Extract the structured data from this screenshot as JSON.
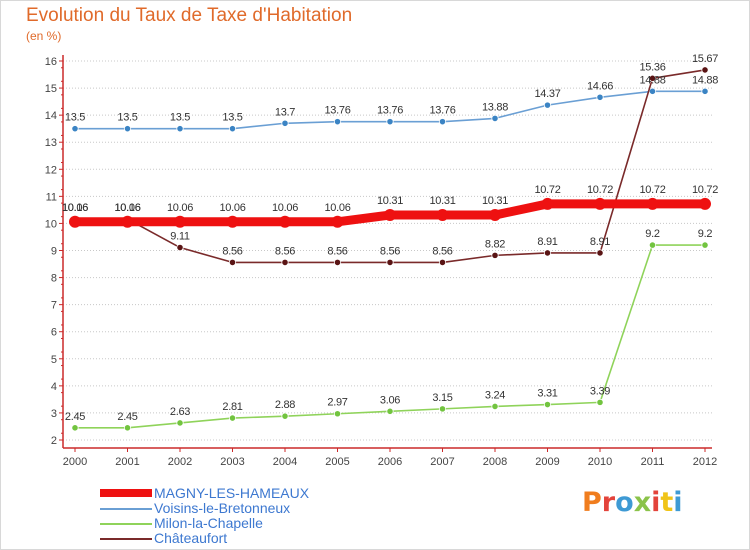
{
  "title": "Evolution du Taux de Taxe d'Habitation",
  "subtitle": "(en %)",
  "logo": {
    "text": "Proxiti",
    "letter_colors": [
      "#f07d1e",
      "#e3433b",
      "#3e9ad4",
      "#8bc34a",
      "#e3433b",
      "#f0c419",
      "#3e9ad4"
    ]
  },
  "colors": {
    "axis": "#cc2a2a",
    "grid": "#c8c8c8",
    "label": "#444444",
    "legend_text": "#3d78d0"
  },
  "chart_data": {
    "type": "line",
    "title": "Evolution du Taux de Taxe d'Habitation",
    "ylabel": "(en %)",
    "xlabel": "",
    "ylim": [
      2,
      16
    ],
    "yticks": [
      2,
      3,
      4,
      5,
      6,
      7,
      8,
      9,
      10,
      11,
      12,
      13,
      14,
      15,
      16
    ],
    "x": [
      "2000",
      "2001",
      "2002",
      "2003",
      "2004",
      "2005",
      "2006",
      "2007",
      "2008",
      "2009",
      "2010",
      "2011",
      "2012"
    ],
    "series": [
      {
        "name": "MAGNY-LES-HAMEAUX",
        "color": "#ee1111",
        "marker_fill": "#ee1111",
        "emphasis": true,
        "values": [
          10.06,
          10.06,
          10.06,
          10.06,
          10.06,
          10.06,
          10.31,
          10.31,
          10.31,
          10.72,
          10.72,
          10.72,
          10.72
        ],
        "labels": [
          "10.06",
          "10.06",
          "10.06",
          "10.06",
          "10.06",
          "10.06",
          "10.31",
          "10.31",
          "10.31",
          "10.72",
          "10.72",
          "10.72",
          "10.72"
        ]
      },
      {
        "name": "Voisins-le-Bretonneux",
        "color": "#6a9fd4",
        "marker_fill": "#3b84c4",
        "emphasis": false,
        "values": [
          13.5,
          13.5,
          13.5,
          13.5,
          13.7,
          13.76,
          13.76,
          13.76,
          13.88,
          14.37,
          14.66,
          14.88,
          14.88
        ],
        "labels": [
          "13.5",
          "13.5",
          "13.5",
          "13.5",
          "13.7",
          "13.76",
          "13.76",
          "13.76",
          "13.88",
          "14.37",
          "14.66",
          "14.88",
          "14.88"
        ]
      },
      {
        "name": "Milon-la-Chapelle",
        "color": "#8fd35a",
        "marker_fill": "#72c43f",
        "emphasis": false,
        "values": [
          2.45,
          2.45,
          2.63,
          2.81,
          2.88,
          2.97,
          3.06,
          3.15,
          3.24,
          3.31,
          3.39,
          9.2,
          9.2
        ],
        "labels": [
          "2.45",
          "2.45",
          "2.63",
          "2.81",
          "2.88",
          "2.97",
          "3.06",
          "3.15",
          "3.24",
          "3.31",
          "3.39",
          "9.2",
          "9.2"
        ]
      },
      {
        "name": "Châteaufort",
        "color": "#7a2a2a",
        "marker_fill": "#5a1414",
        "emphasis": false,
        "values": [
          10.16,
          10.16,
          9.11,
          8.56,
          8.56,
          8.56,
          8.56,
          8.56,
          8.82,
          8.91,
          8.91,
          15.36,
          15.67
        ],
        "labels": [
          "10.16",
          "10.16",
          "9.11",
          "8.56",
          "8.56",
          "8.56",
          "8.56",
          "8.56",
          "8.82",
          "8.91",
          "8.91",
          "15.36",
          "15.67"
        ]
      }
    ],
    "legend": [
      "MAGNY-LES-HAMEAUX",
      "Voisins-le-Bretonneux",
      "Milon-la-Chapelle",
      "Châteaufort"
    ],
    "legend_position": "bottom-left",
    "grid": "horizontal"
  }
}
